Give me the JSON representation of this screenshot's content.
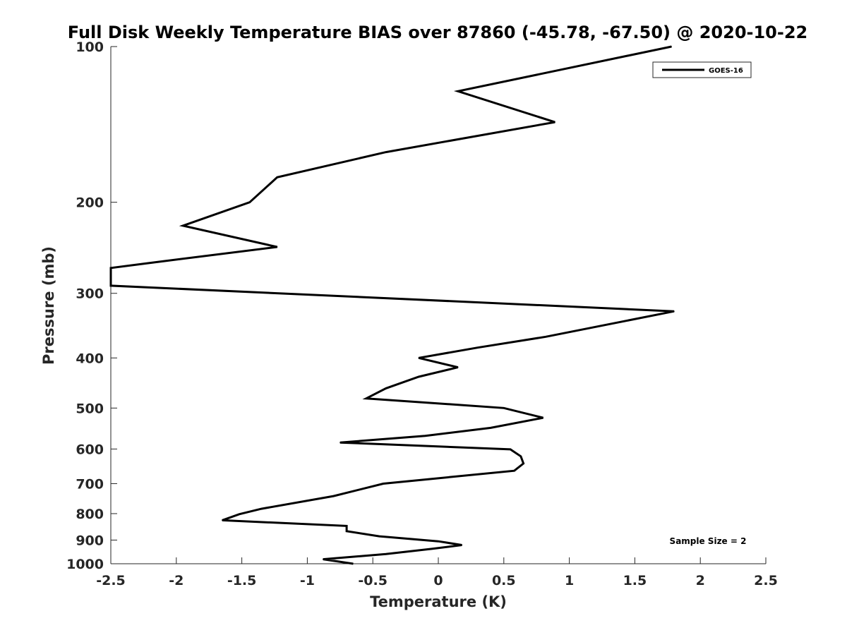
{
  "chart_data": {
    "type": "line",
    "title": "Full Disk Weekly Temperature BIAS over 87860 (-45.78, -67.50) @ 2020-10-22",
    "xlabel": "Temperature (K)",
    "ylabel": "Pressure (mb)",
    "xlim": [
      -2.5,
      2.5
    ],
    "ylim": [
      100,
      1000
    ],
    "yscale": "log",
    "y_reversed": true,
    "xticks": [
      -2.5,
      -2,
      -1.5,
      -1,
      -0.5,
      0,
      0.5,
      1,
      1.5,
      2,
      2.5
    ],
    "xtick_labels": [
      "-2.5",
      "-2",
      "-1.5",
      "-1",
      "-0.5",
      "0",
      "0.5",
      "1",
      "1.5",
      "2",
      "2.5"
    ],
    "yticks": [
      100,
      200,
      300,
      400,
      500,
      600,
      700,
      800,
      900,
      1000
    ],
    "ytick_labels": [
      "100",
      "200",
      "300",
      "400",
      "500",
      "600",
      "700",
      "800",
      "900",
      "1000"
    ],
    "grid": false,
    "legend_position": "top-right",
    "annotation": "Sample Size = 2",
    "series": [
      {
        "name": "GOES-16",
        "color": "#000000",
        "points": [
          {
            "x": 1.78,
            "y": 100
          },
          {
            "x": 0.15,
            "y": 122
          },
          {
            "x": 0.89,
            "y": 140
          },
          {
            "x": -0.4,
            "y": 160
          },
          {
            "x": -1.23,
            "y": 179
          },
          {
            "x": -1.44,
            "y": 200
          },
          {
            "x": -1.95,
            "y": 222
          },
          {
            "x": -1.23,
            "y": 244
          },
          {
            "x": -2.2,
            "y": 262
          },
          {
            "x": -2.5,
            "y": 268
          },
          {
            "x": -2.5,
            "y": 290
          },
          {
            "x": 1.8,
            "y": 325
          },
          {
            "x": 0.82,
            "y": 364
          },
          {
            "x": 0.3,
            "y": 382
          },
          {
            "x": -0.15,
            "y": 400
          },
          {
            "x": 0.15,
            "y": 417
          },
          {
            "x": -0.15,
            "y": 435
          },
          {
            "x": -0.4,
            "y": 458
          },
          {
            "x": -0.55,
            "y": 479
          },
          {
            "x": 0.5,
            "y": 500
          },
          {
            "x": 0.8,
            "y": 522
          },
          {
            "x": 0.4,
            "y": 546
          },
          {
            "x": -0.1,
            "y": 566
          },
          {
            "x": -0.75,
            "y": 583
          },
          {
            "x": 0.55,
            "y": 601
          },
          {
            "x": 0.63,
            "y": 620
          },
          {
            "x": 0.65,
            "y": 640
          },
          {
            "x": 0.58,
            "y": 661
          },
          {
            "x": -0.42,
            "y": 700
          },
          {
            "x": -0.8,
            "y": 740
          },
          {
            "x": -1.35,
            "y": 783
          },
          {
            "x": -1.52,
            "y": 802
          },
          {
            "x": -1.65,
            "y": 824
          },
          {
            "x": -0.7,
            "y": 845
          },
          {
            "x": -0.7,
            "y": 865
          },
          {
            "x": -0.45,
            "y": 885
          },
          {
            "x": 0.0,
            "y": 905
          },
          {
            "x": 0.18,
            "y": 920
          },
          {
            "x": -0.05,
            "y": 936
          },
          {
            "x": -0.4,
            "y": 958
          },
          {
            "x": -0.88,
            "y": 980
          },
          {
            "x": -0.65,
            "y": 1000
          }
        ]
      }
    ]
  }
}
